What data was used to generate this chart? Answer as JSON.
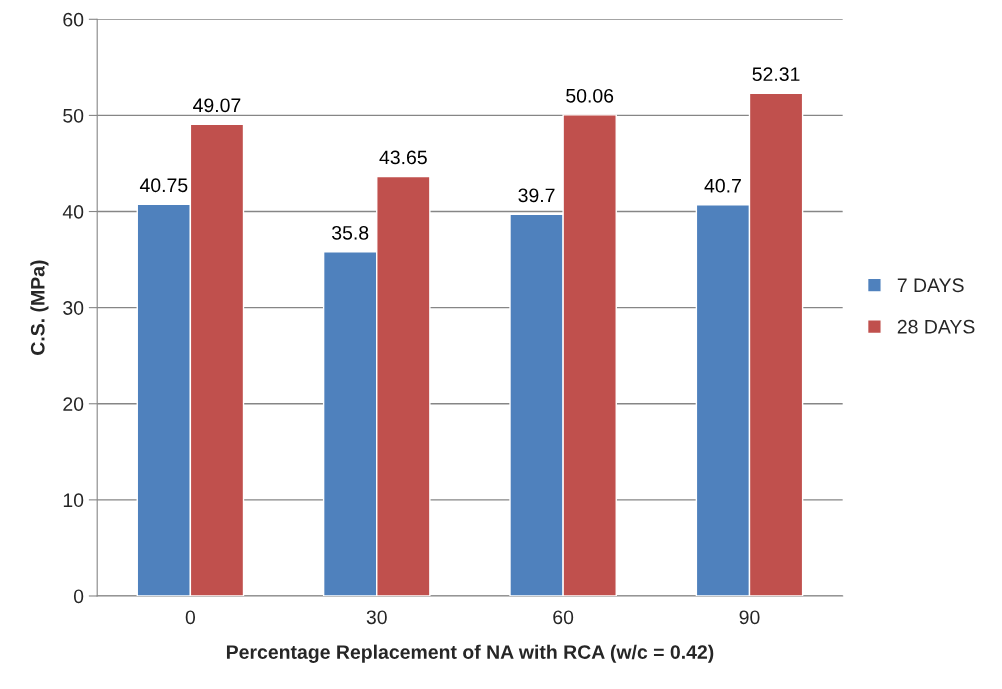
{
  "chart_data": {
    "type": "bar",
    "xlabel": "Percentage Replacement of NA with RCA (w/c = 0.42)",
    "ylabel": "C.S. (MPa)",
    "categories": [
      "0",
      "30",
      "60",
      "90"
    ],
    "series": [
      {
        "name": "7 DAYS",
        "color": "#4f81bd",
        "values": [
          40.75,
          35.8,
          39.7,
          40.7
        ]
      },
      {
        "name": "28 DAYS",
        "color": "#c0504d",
        "values": [
          49.07,
          43.65,
          50.06,
          52.31
        ]
      }
    ],
    "ylim": [
      0,
      60
    ],
    "yticks": [
      0,
      10,
      20,
      30,
      40,
      50,
      60
    ],
    "grid": "y",
    "legend": "right",
    "data_labels": true
  }
}
